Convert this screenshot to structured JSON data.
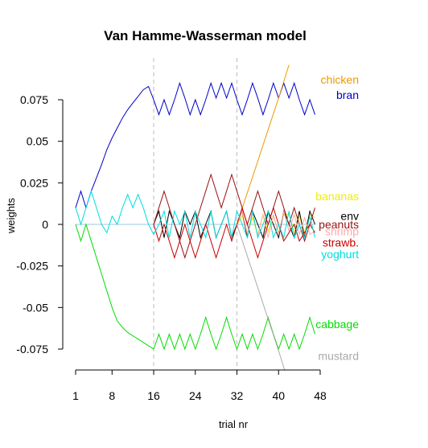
{
  "chart_data": {
    "type": "line",
    "title": "Van Hamme-Wasserman model",
    "xlabel": "trial nr",
    "ylabel": "weights",
    "xlim": [
      0,
      49
    ],
    "ylim": [
      -0.085,
      0.095
    ],
    "x_ticks": [
      1,
      8,
      16,
      24,
      32,
      40,
      48
    ],
    "y_ticks": [
      0.075,
      0.05,
      0.025,
      0,
      -0.025,
      -0.05,
      -0.075
    ],
    "y_tick_labels": [
      "0.075",
      "0.05",
      "0.025",
      "0",
      "-0.025",
      "-0.05",
      "-0.075"
    ],
    "vlines": [
      16,
      32
    ],
    "grid": false,
    "series": [
      {
        "name": "bran",
        "color": "#0000cc",
        "label_y": 0.078,
        "x": [
          1,
          2,
          3,
          4,
          5,
          6,
          7,
          8,
          9,
          10,
          11,
          12,
          13,
          14,
          15,
          16,
          17,
          18,
          19,
          20,
          21,
          22,
          23,
          24,
          25,
          26,
          27,
          28,
          29,
          30,
          31,
          32,
          33,
          34,
          35,
          36,
          37,
          38,
          39,
          40,
          41,
          42,
          43,
          44,
          45,
          46,
          47
        ],
        "values": [
          0.01,
          0.02,
          0.01,
          0.02,
          0.028,
          0.036,
          0.045,
          0.052,
          0.058,
          0.064,
          0.069,
          0.073,
          0.077,
          0.081,
          0.083,
          0.075,
          0.066,
          0.075,
          0.066,
          0.075,
          0.085,
          0.076,
          0.066,
          0.075,
          0.066,
          0.075,
          0.085,
          0.076,
          0.085,
          0.076,
          0.085,
          0.075,
          0.066,
          0.075,
          0.085,
          0.076,
          0.066,
          0.075,
          0.085,
          0.076,
          0.085,
          0.076,
          0.085,
          0.075,
          0.066,
          0.075,
          0.066
        ]
      },
      {
        "name": "chicken",
        "color": "#ee9900",
        "label_y": 0.087,
        "x": [
          32,
          34,
          36,
          38,
          40,
          42
        ],
        "values": [
          0,
          0.019,
          0.038,
          0.057,
          0.076,
          0.096
        ]
      },
      {
        "name": "bananas",
        "color": "#eeee00",
        "label_y": 0.017,
        "x": [
          32,
          33,
          34,
          35,
          36,
          37,
          38,
          39,
          40,
          41,
          42,
          43,
          44,
          45,
          46,
          47
        ],
        "values": [
          0,
          0.005,
          -0.005,
          0.004,
          -0.006,
          0.006,
          -0.004,
          0.005,
          -0.005,
          0.006,
          0.006,
          -0.004,
          0.005,
          -0.005,
          0.006,
          0.004
        ]
      },
      {
        "name": "env",
        "color": "#000000",
        "label_y": 0.005,
        "x": [
          16,
          17,
          18,
          19,
          20,
          21,
          22,
          23,
          24,
          25,
          26,
          27,
          28,
          29,
          30,
          31,
          32,
          33,
          34,
          35,
          36,
          37,
          38,
          39,
          40,
          41,
          42,
          43,
          44,
          45,
          46,
          47
        ],
        "values": [
          0,
          0.008,
          -0.008,
          0.008,
          0,
          -0.008,
          0.008,
          0,
          0.008,
          -0.008,
          0,
          0.008,
          -0.008,
          0,
          0.008,
          -0.008,
          0,
          0.008,
          -0.008,
          0.008,
          0,
          -0.008,
          0.008,
          0,
          -0.008,
          0.008,
          0,
          -0.008,
          0.008,
          -0.008,
          0.008,
          0
        ]
      },
      {
        "name": "peanuts",
        "color": "#991111",
        "label_y": 0.0,
        "x": [
          16,
          17,
          18,
          19,
          20,
          21,
          22,
          23,
          24,
          25,
          26,
          27,
          28,
          29,
          30,
          31,
          32,
          33,
          34,
          35,
          36,
          37,
          38,
          39,
          40,
          41,
          42,
          43,
          44,
          45,
          46,
          47
        ],
        "values": [
          0,
          0.01,
          0.02,
          0.01,
          0,
          -0.01,
          -0.02,
          -0.01,
          0,
          0.01,
          0.02,
          0.03,
          0.02,
          0.01,
          0.02,
          0.03,
          0.02,
          0.01,
          0,
          0.01,
          0.02,
          0.01,
          0,
          0.01,
          0.02,
          0.01,
          0,
          0.01,
          0,
          -0.01,
          0,
          0.01
        ]
      },
      {
        "name": "shrimp",
        "color": "#ffaaaa",
        "label_y": -0.004,
        "x": [
          32,
          33,
          34,
          35,
          36,
          37,
          38,
          39,
          40,
          41,
          42,
          43,
          44,
          45,
          46,
          47
        ],
        "values": [
          0,
          0.008,
          -0.006,
          0.007,
          -0.007,
          0.006,
          -0.008,
          0.006,
          -0.006,
          0.008,
          -0.004,
          0.006,
          -0.006,
          0.004,
          -0.006,
          -0.004
        ]
      },
      {
        "name": "strawb.",
        "color": "#cc0000",
        "label_y": -0.011,
        "x": [
          16,
          17,
          18,
          19,
          20,
          21,
          22,
          23,
          24,
          25,
          26,
          27,
          28,
          29,
          30,
          31,
          32,
          33,
          34,
          35,
          36,
          37,
          38,
          39,
          40,
          41,
          42,
          43,
          44,
          45,
          46,
          47
        ],
        "values": [
          0,
          -0.01,
          0,
          -0.01,
          -0.02,
          -0.01,
          0,
          -0.01,
          -0.02,
          -0.01,
          0,
          -0.01,
          -0.02,
          -0.01,
          0,
          -0.01,
          0,
          0.01,
          0,
          -0.01,
          -0.02,
          -0.01,
          0,
          0.01,
          0,
          -0.01,
          -0.005,
          0,
          -0.01,
          -0.005,
          0,
          -0.005
        ]
      },
      {
        "name": "yoghurt",
        "color": "#00dddd",
        "label_y": -0.018,
        "x": [
          1,
          2,
          3,
          4,
          5,
          6,
          7,
          8,
          9,
          10,
          11,
          12,
          13,
          14,
          15,
          16,
          17,
          18,
          19,
          20,
          21,
          22,
          23,
          24,
          25,
          26,
          27,
          28,
          29,
          30,
          31,
          32,
          33,
          34,
          35,
          36,
          37,
          38,
          39,
          40,
          41,
          42,
          43,
          44,
          45,
          46,
          47
        ],
        "values": [
          0.01,
          0,
          0.01,
          0.02,
          0.01,
          0,
          -0.005,
          0.005,
          0,
          0.01,
          0.018,
          0.01,
          0.018,
          0.01,
          0,
          -0.006,
          0,
          0.008,
          -0.008,
          0.008,
          0,
          0.008,
          -0.008,
          0.008,
          0,
          -0.008,
          0.008,
          -0.008,
          0,
          0.008,
          -0.008,
          0.008,
          0,
          -0.008,
          0.008,
          -0.008,
          0,
          0.008,
          -0.008,
          0,
          -0.008,
          0.008,
          -0.008,
          0,
          -0.008,
          0.005,
          -0.008
        ]
      },
      {
        "name": "cabbage",
        "color": "#00dd00",
        "label_y": -0.06,
        "x": [
          1,
          2,
          3,
          4,
          5,
          6,
          7,
          8,
          9,
          10,
          11,
          12,
          13,
          14,
          15,
          16,
          17,
          18,
          19,
          20,
          21,
          22,
          23,
          24,
          25,
          26,
          27,
          28,
          29,
          30,
          31,
          32,
          33,
          34,
          35,
          36,
          37,
          38,
          39,
          40,
          41,
          42,
          43,
          44,
          45,
          46,
          47
        ],
        "values": [
          0,
          -0.01,
          0,
          -0.01,
          -0.02,
          -0.03,
          -0.04,
          -0.05,
          -0.058,
          -0.062,
          -0.065,
          -0.067,
          -0.069,
          -0.071,
          -0.073,
          -0.075,
          -0.066,
          -0.075,
          -0.066,
          -0.075,
          -0.066,
          -0.075,
          -0.066,
          -0.075,
          -0.066,
          -0.056,
          -0.066,
          -0.075,
          -0.066,
          -0.056,
          -0.066,
          -0.075,
          -0.066,
          -0.075,
          -0.066,
          -0.075,
          -0.066,
          -0.056,
          -0.066,
          -0.075,
          -0.066,
          -0.075,
          -0.066,
          -0.075,
          -0.066,
          -0.056,
          -0.066
        ]
      },
      {
        "name": "mustard",
        "color": "#aaaaaa",
        "label_y": -0.079,
        "x": [
          32,
          34,
          36,
          38,
          40,
          42
        ],
        "values": [
          0,
          -0.019,
          -0.038,
          -0.057,
          -0.076,
          -0.096
        ]
      }
    ]
  }
}
